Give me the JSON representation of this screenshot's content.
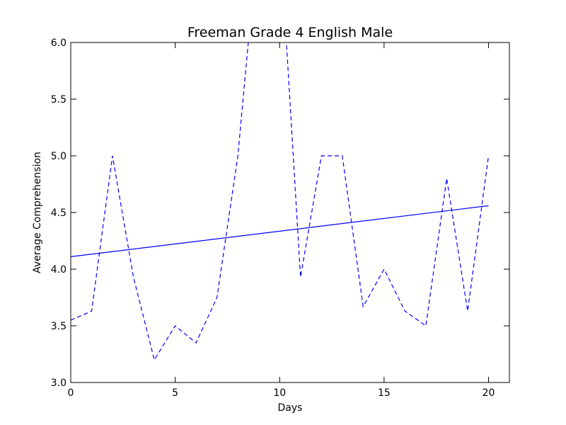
{
  "chart_data": {
    "type": "line",
    "title": "Freeman Grade 4 English Male",
    "xlabel": "Days",
    "ylabel": "Average Comprehension",
    "xlim": [
      0,
      21
    ],
    "ylim": [
      3.0,
      6.0
    ],
    "x_ticks": [
      0,
      5,
      10,
      15,
      20
    ],
    "y_ticks": [
      3.0,
      3.5,
      4.0,
      4.5,
      5.0,
      5.5,
      6.0
    ],
    "x_tick_labels": [
      "0",
      "5",
      "10",
      "15",
      "20"
    ],
    "y_tick_labels": [
      "3.0",
      "3.5",
      "4.0",
      "4.5",
      "5.0",
      "5.5",
      "6.0"
    ],
    "grid": false,
    "legend": false,
    "series": [
      {
        "style": "dashed",
        "color": "#0000ff",
        "x": [
          0,
          1,
          2,
          3,
          4,
          5,
          6,
          7,
          8,
          9,
          10,
          11,
          12,
          13,
          14,
          15,
          16,
          17,
          18,
          19,
          20
        ],
        "y": [
          3.55,
          3.63,
          5.0,
          3.93,
          3.2,
          3.5,
          3.35,
          3.75,
          5.0,
          7.0,
          7.0,
          3.93,
          5.0,
          5.0,
          3.67,
          4.0,
          3.63,
          3.5,
          4.8,
          3.63,
          5.0
        ]
      },
      {
        "style": "solid",
        "color": "#0000ff",
        "x": [
          0,
          20
        ],
        "y": [
          4.11,
          4.56
        ]
      }
    ]
  }
}
